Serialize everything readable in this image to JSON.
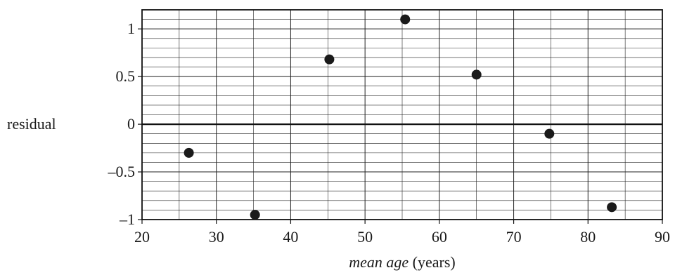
{
  "chart_data": {
    "type": "scatter",
    "title": "",
    "xlabel": {
      "main": "mean age",
      "unit": " (years)"
    },
    "ylabel": "residual",
    "xlim": [
      20,
      90
    ],
    "ylim": [
      -1,
      1.2
    ],
    "x_ticks": [
      20,
      30,
      40,
      50,
      60,
      70,
      80,
      90
    ],
    "y_ticks": [
      {
        "value": 1,
        "label": "1"
      },
      {
        "value": 0.5,
        "label": "0.5"
      },
      {
        "value": 0,
        "label": "0"
      },
      {
        "value": -0.5,
        "label": "–0.5"
      },
      {
        "value": -1,
        "label": "–1"
      }
    ],
    "grid": true,
    "points": [
      {
        "x": 26.3,
        "y": -0.3
      },
      {
        "x": 35.2,
        "y": -0.95
      },
      {
        "x": 45.2,
        "y": 0.68
      },
      {
        "x": 55.4,
        "y": 1.1
      },
      {
        "x": 65.0,
        "y": 0.52
      },
      {
        "x": 74.8,
        "y": -0.1
      },
      {
        "x": 83.2,
        "y": -0.87
      }
    ],
    "reference_line": {
      "y": 0
    }
  }
}
